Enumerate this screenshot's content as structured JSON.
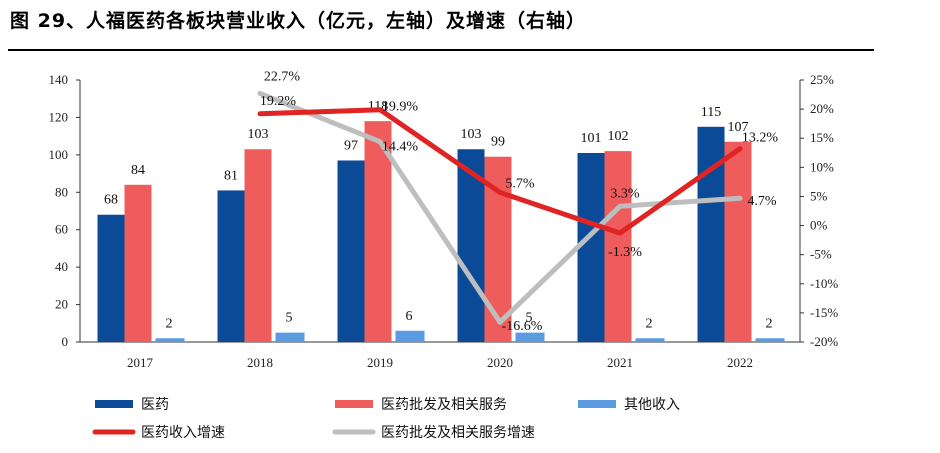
{
  "title": "图 29、人福医药各板块营业收入（亿元，左轴）及增速（右轴）",
  "chart_data": {
    "type": "bar",
    "title": "图 29、人福医药各板块营业收入（亿元，左轴）及增速（右轴）",
    "categories": [
      "2017",
      "2018",
      "2019",
      "2020",
      "2021",
      "2022"
    ],
    "series": [
      {
        "name": "医药",
        "type": "bar",
        "axis": "left",
        "color": "#0B4A96",
        "values": [
          68,
          81,
          97,
          103,
          101,
          115
        ]
      },
      {
        "name": "医药批发及相关服务",
        "type": "bar",
        "axis": "left",
        "color": "#EE5C5C",
        "values": [
          84,
          103,
          118,
          99,
          102,
          107
        ]
      },
      {
        "name": "其他收入",
        "type": "bar",
        "axis": "left",
        "color": "#5B9BE0",
        "values": [
          2,
          5,
          6,
          5,
          2,
          2
        ]
      },
      {
        "name": "医药收入增速",
        "type": "line",
        "axis": "right",
        "color": "#E02424",
        "values": [
          null,
          19.2,
          19.9,
          5.7,
          -1.3,
          13.2
        ],
        "labels": [
          "",
          "19.2%",
          "19.9%",
          "5.7%",
          "-1.3%",
          "13.2%"
        ]
      },
      {
        "name": "医药批发及相关服务增速",
        "type": "line",
        "axis": "right",
        "color": "#BEBEBE",
        "values": [
          null,
          22.7,
          14.4,
          -16.6,
          3.3,
          4.7
        ],
        "labels": [
          "",
          "22.7%",
          "14.4%",
          "-16.6%",
          "3.3%",
          "4.7%"
        ]
      }
    ],
    "y_left": {
      "min": 0,
      "max": 140,
      "ticks": [
        "0",
        "20",
        "40",
        "60",
        "80",
        "100",
        "120",
        "140"
      ]
    },
    "y_right": {
      "min": -20,
      "max": 25,
      "ticks": [
        "-20%",
        "-15%",
        "-10%",
        "-5%",
        "0%",
        "5%",
        "10%",
        "15%",
        "20%",
        "25%"
      ]
    },
    "grid": false,
    "legend_position": "bottom"
  }
}
